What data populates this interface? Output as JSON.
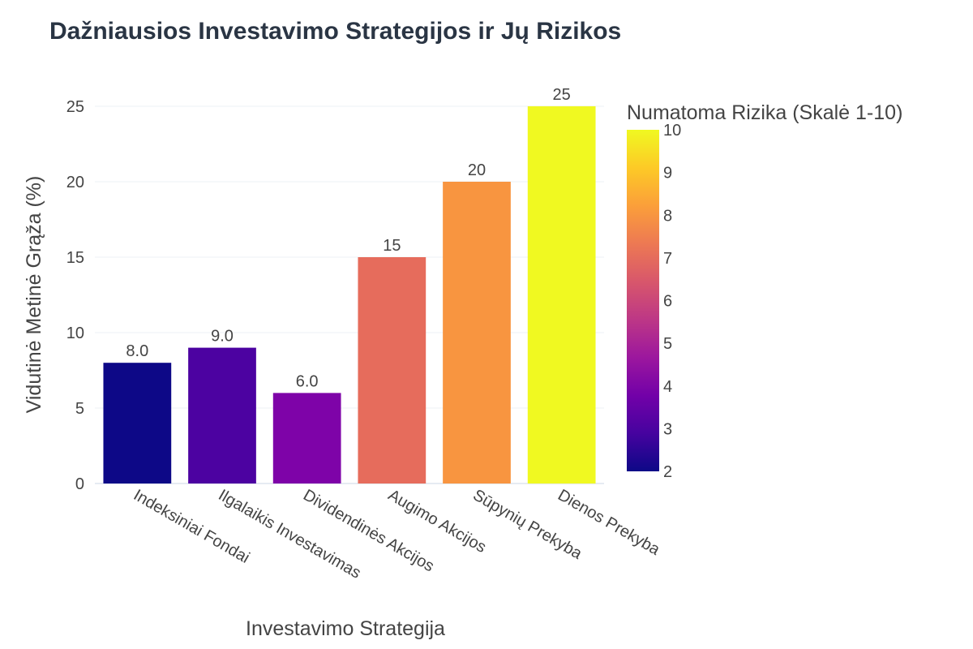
{
  "chart_data": {
    "type": "bar",
    "title": "Dažniausios Investavimo Strategijos ir Jų Rizikos",
    "xlabel": "Investavimo Strategija",
    "ylabel": "Vidutinė Metinė Grąža (%)",
    "ylim": [
      0,
      25
    ],
    "yticks": [
      0,
      5,
      10,
      15,
      20,
      25
    ],
    "grid": true,
    "categories": [
      "Indeksiniai Fondai",
      "Ilgalaikis Investavimas",
      "Dividendinės Akcijos",
      "Augimo Akcijos",
      "Sūpynių Prekyba",
      "Dienos Prekyba"
    ],
    "values": [
      8,
      9,
      6,
      15,
      20,
      25
    ],
    "value_labels": [
      "8.0",
      "9.0",
      "6.0",
      "15",
      "20",
      "25"
    ],
    "risk": [
      2,
      3,
      4,
      7,
      8,
      10
    ],
    "bar_colors": [
      "#0d0887",
      "#4c02a1",
      "#7e03a8",
      "#e66c5c",
      "#f89540",
      "#f0f921"
    ],
    "colorbar": {
      "title": "Numatoma Rizika (Skalė 1-10)",
      "range": [
        2,
        10
      ],
      "ticks": [
        2,
        3,
        4,
        5,
        6,
        7,
        8,
        9,
        10
      ],
      "colorscale": "Plasma"
    }
  }
}
